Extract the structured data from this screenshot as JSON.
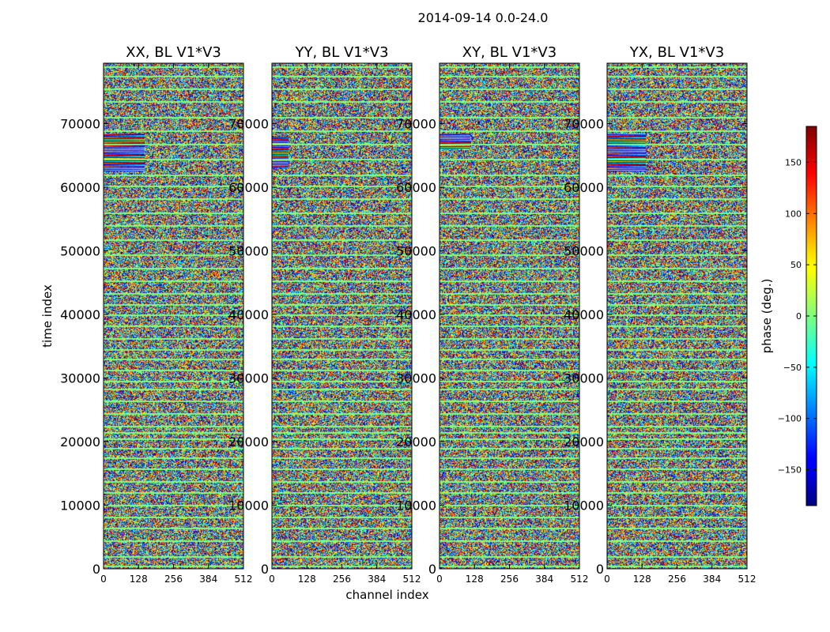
{
  "figure": {
    "suptitle": "2014-09-14 0.0-24.0",
    "xlabel": "channel index",
    "ylabel": "time index",
    "colorbar_label": "phase (deg.)"
  },
  "chart_data": [
    {
      "type": "heatmap",
      "title": "XX, BL V1*V3",
      "xlabel": "channel index",
      "ylabel": "time index",
      "xlim": [
        0,
        512
      ],
      "ylim": [
        0,
        79500
      ],
      "xticks": [
        0,
        128,
        256,
        384,
        512
      ],
      "yticks": [
        0,
        10000,
        20000,
        30000,
        40000,
        50000,
        60000,
        70000
      ],
      "zlabel": "phase (deg.)",
      "zlim": [
        -180,
        180
      ],
      "colormap": "jet",
      "features": [
        {
          "t0": 62500,
          "t1": 68500,
          "ch0": 0,
          "ch1": 150,
          "desc": "coherent phase stripes"
        }
      ]
    },
    {
      "type": "heatmap",
      "title": "YY, BL V1*V3",
      "xlim": [
        0,
        512
      ],
      "ylim": [
        0,
        79500
      ],
      "xticks": [
        0,
        128,
        256,
        384,
        512
      ],
      "yticks": [
        0,
        10000,
        20000,
        30000,
        40000,
        50000,
        60000,
        70000
      ],
      "zlim": [
        -180,
        180
      ],
      "colormap": "jet",
      "features": [
        {
          "t0": 63000,
          "t1": 68000,
          "ch0": 0,
          "ch1": 60,
          "desc": "weak coherent phase stripes"
        }
      ]
    },
    {
      "type": "heatmap",
      "title": "XY, BL V1*V3",
      "xlim": [
        0,
        512
      ],
      "ylim": [
        0,
        79500
      ],
      "xticks": [
        0,
        128,
        256,
        384,
        512
      ],
      "yticks": [
        0,
        10000,
        20000,
        30000,
        40000,
        50000,
        60000,
        70000
      ],
      "zlim": [
        -180,
        180
      ],
      "colormap": "jet",
      "features": [
        {
          "t0": 66000,
          "t1": 68500,
          "ch0": 0,
          "ch1": 110,
          "desc": "coherent phase stripes"
        }
      ]
    },
    {
      "type": "heatmap",
      "title": "YX, BL V1*V3",
      "xlim": [
        0,
        512
      ],
      "ylim": [
        0,
        79500
      ],
      "xticks": [
        0,
        128,
        256,
        384,
        512
      ],
      "yticks": [
        0,
        10000,
        20000,
        30000,
        40000,
        50000,
        60000,
        70000
      ],
      "zlim": [
        -180,
        180
      ],
      "colormap": "jet",
      "features": [
        {
          "t0": 62500,
          "t1": 68500,
          "ch0": 0,
          "ch1": 140,
          "desc": "coherent phase stripes"
        }
      ]
    }
  ],
  "colorbar": {
    "range": [
      -185,
      185
    ],
    "ticks": [
      -150,
      -100,
      -50,
      0,
      50,
      100,
      150
    ],
    "tick_labels": [
      "−150",
      "−100",
      "−50",
      "0",
      "50",
      "100",
      "150"
    ]
  },
  "flag_rows_time_index": [
    500,
    2000,
    4500,
    6500,
    8200,
    10000,
    12000,
    13800,
    15800,
    17500,
    19000,
    20500,
    21500,
    22500,
    24500,
    26500,
    28300,
    29600,
    31300,
    33000,
    34500,
    36300,
    38200,
    40000,
    41600,
    43300,
    45300,
    47300,
    49500,
    51800,
    54000,
    56000,
    58200,
    60300,
    62000,
    64500,
    66800,
    69000,
    71000,
    73500,
    75500,
    77500,
    79000
  ]
}
